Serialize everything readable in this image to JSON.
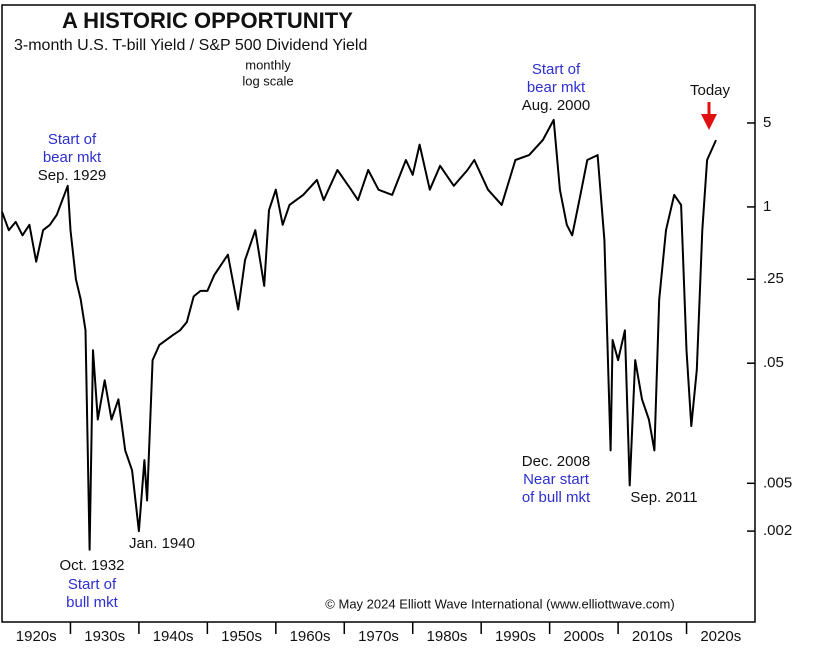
{
  "chart_data": {
    "type": "line",
    "title": "A HISTORIC OPPORTUNITY",
    "subtitle": "3-month U.S. T-bill Yield / S&P 500 Dividend Yield",
    "annotations": [
      "monthly",
      "log scale",
      "Start of",
      "bear mkt",
      "Sep. 1929",
      "Oct. 1932",
      "Start of",
      "bull mkt",
      "Jan. 1940",
      "Start of",
      "bear mkt",
      "Aug. 2000",
      "Dec. 2008",
      "Near start",
      "of bull mkt",
      "Sep. 2011",
      "Today"
    ],
    "source": "© May 2024 Elliott Wave International (www.elliottwave.com)",
    "log_scale": true,
    "color": "#000000",
    "xlim": [
      1920,
      2030
    ],
    "xticks": [
      {
        "value": 1925,
        "label": "1920s"
      },
      {
        "value": 1935,
        "label": "1930s"
      },
      {
        "value": 1945,
        "label": "1940s"
      },
      {
        "value": 1955,
        "label": "1950s"
      },
      {
        "value": 1965,
        "label": "1960s"
      },
      {
        "value": 1975,
        "label": "1970s"
      },
      {
        "value": 1985,
        "label": "1980s"
      },
      {
        "value": 1995,
        "label": "1990s"
      },
      {
        "value": 2005,
        "label": "2000s"
      },
      {
        "value": 2015,
        "label": "2010s"
      },
      {
        "value": 2025,
        "label": "2020s"
      }
    ],
    "ylim": [
      0.00035,
      48
    ],
    "yticks": [
      5,
      1,
      {
        "value": 0.25,
        "label": ".25"
      },
      {
        "value": 0.05,
        "label": ".05"
      },
      {
        "value": 0.005,
        "label": ".005"
      },
      {
        "value": 0.002,
        "label": ".002"
      }
    ],
    "x": [
      1920,
      1921,
      1922,
      1923,
      1924,
      1925,
      1926,
      1927,
      1928,
      1929.6,
      1930,
      1930.8,
      1931.5,
      1932.2,
      1932.8,
      1933.3,
      1934,
      1935,
      1936,
      1937,
      1938,
      1939,
      1940,
      1940.8,
      1941.2,
      1942,
      1943,
      1945,
      1946,
      1947,
      1948,
      1949,
      1950,
      1951,
      1952,
      1953,
      1954.5,
      1955.5,
      1957,
      1958.3,
      1959,
      1960,
      1961,
      1962,
      1964,
      1966,
      1967,
      1969,
      1971,
      1972,
      1973.5,
      1975,
      1977,
      1979,
      1980,
      1981,
      1982.5,
      1984,
      1986,
      1988,
      1989,
      1991,
      1993,
      1995,
      1997,
      1999,
      2000.6,
      2001.5,
      2002.5,
      2003.3,
      2004.5,
      2005.5,
      2007,
      2008,
      2008.9,
      2009.2,
      2010,
      2011,
      2011.7,
      2012.5,
      2013.5,
      2014.5,
      2015.3,
      2016,
      2017,
      2018.2,
      2019.2,
      2020,
      2020.7,
      2021.5,
      2022.3,
      2023,
      2024.3
    ],
    "values": [
      0.91,
      0.64,
      0.75,
      0.58,
      0.71,
      0.35,
      0.64,
      0.71,
      0.86,
      1.5,
      0.64,
      0.25,
      0.17,
      0.094,
      0.0014,
      0.064,
      0.017,
      0.036,
      0.017,
      0.025,
      0.0094,
      0.0064,
      0.002,
      0.0078,
      0.0036,
      0.053,
      0.071,
      0.086,
      0.094,
      0.11,
      0.18,
      0.2,
      0.2,
      0.27,
      0.33,
      0.4,
      0.14,
      0.36,
      0.64,
      0.22,
      0.94,
      1.39,
      0.71,
      1.04,
      1.26,
      1.68,
      1.14,
      2.03,
      1.39,
      1.14,
      2.03,
      1.39,
      1.26,
      2.46,
      1.85,
      3.3,
      1.39,
      2.2,
      1.5,
      2.03,
      2.46,
      1.39,
      1.04,
      2.46,
      2.7,
      3.6,
      5.3,
      1.39,
      0.71,
      0.58,
      1.26,
      2.46,
      2.7,
      0.53,
      0.0094,
      0.078,
      0.053,
      0.094,
      0.0048,
      0.053,
      0.025,
      0.017,
      0.0094,
      0.17,
      0.64,
      1.26,
      1.04,
      0.064,
      0.015,
      0.044,
      0.64,
      2.46,
      3.6
    ]
  }
}
